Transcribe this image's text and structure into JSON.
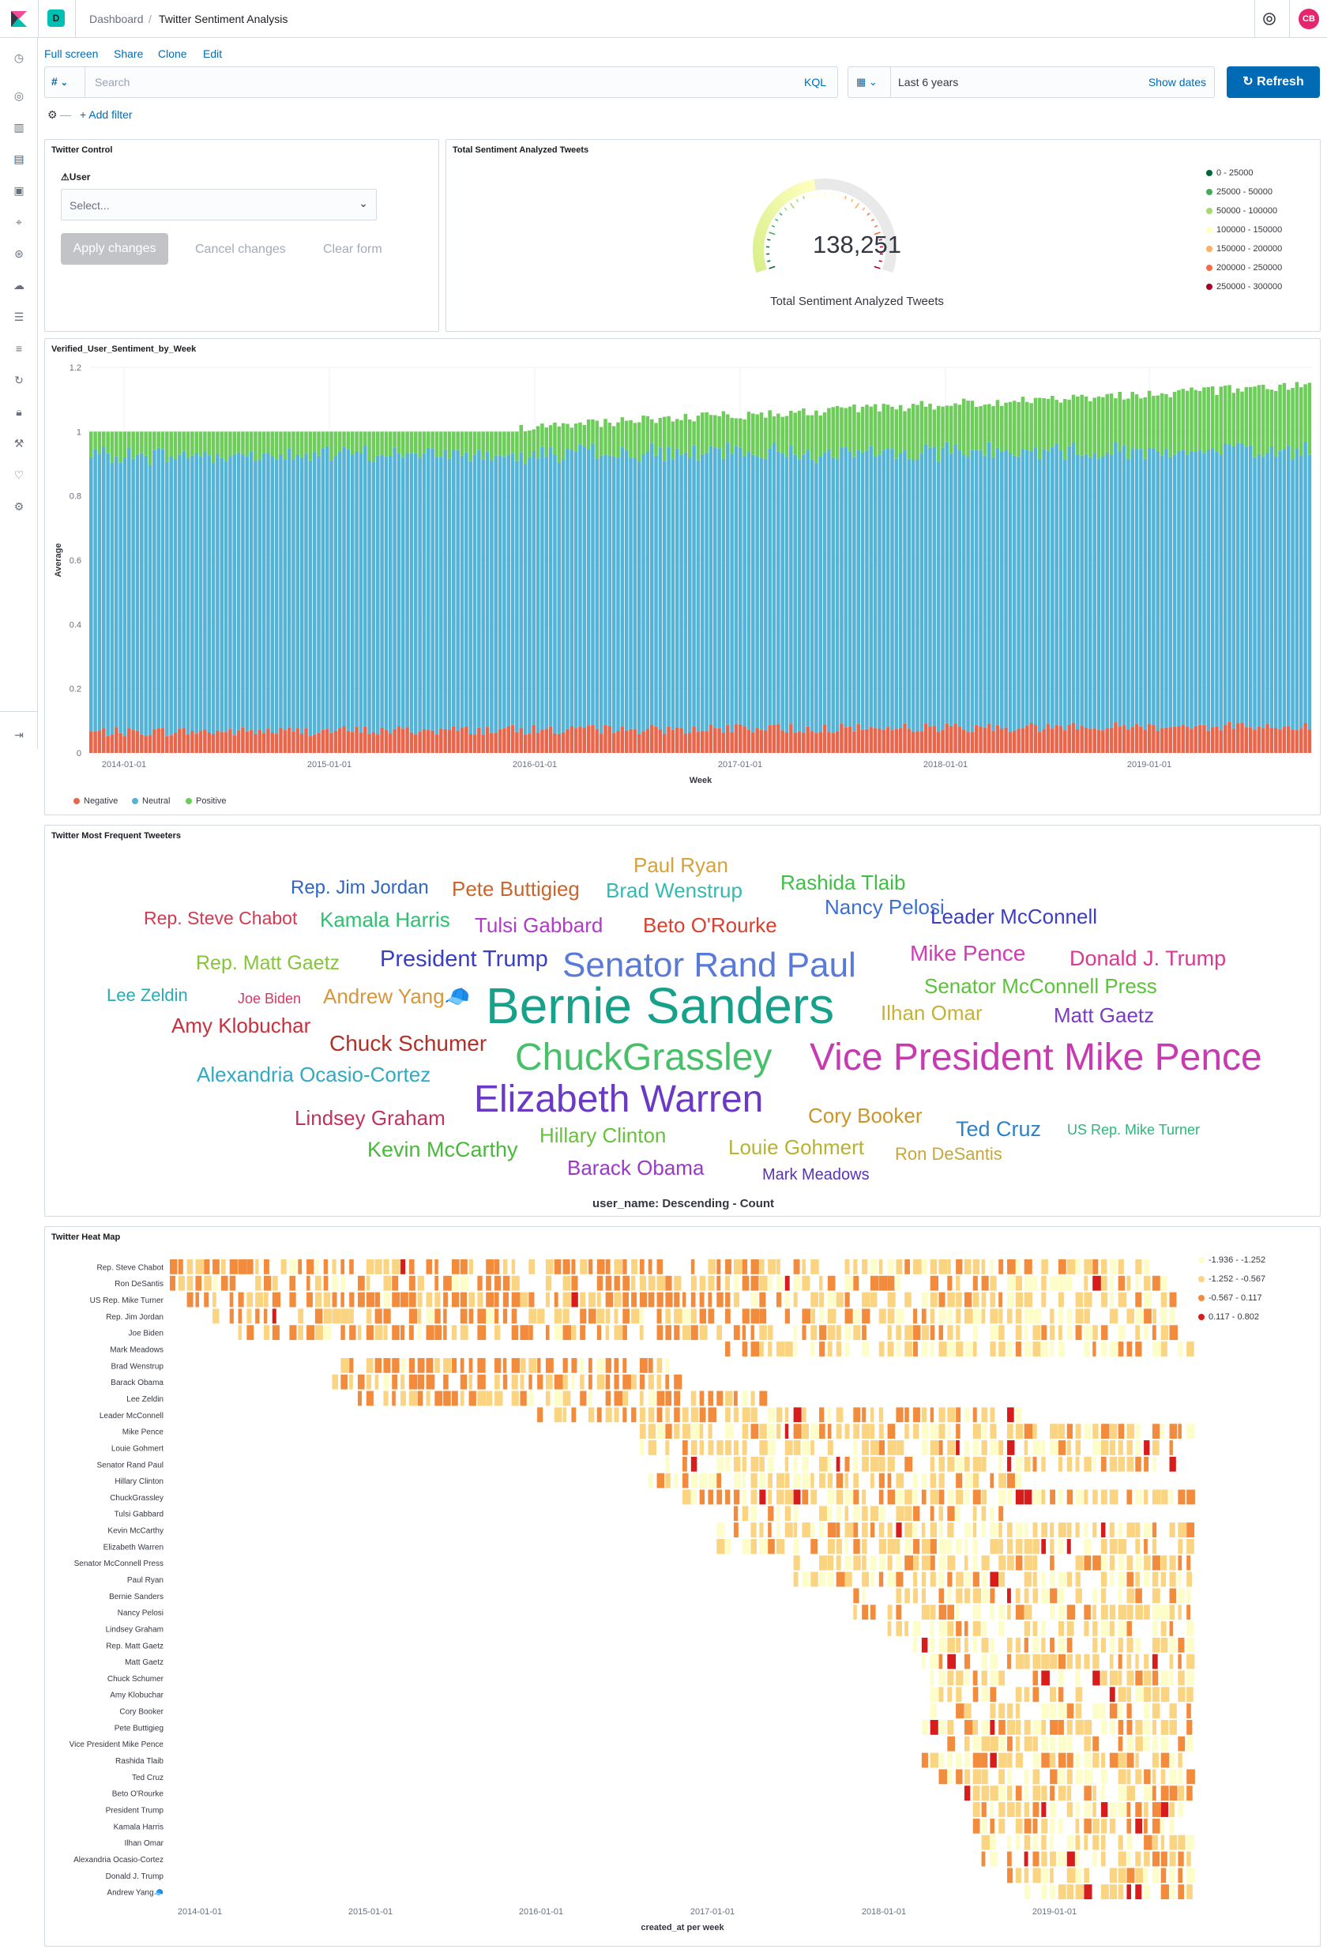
{
  "header": {
    "space_badge": "D",
    "breadcrumb_root": "Dashboard",
    "breadcrumb_sep": "/",
    "breadcrumb_current": "Twitter Sentiment Analysis",
    "user_initials": "CB"
  },
  "toolbar": {
    "full_screen": "Full screen",
    "share": "Share",
    "clone": "Clone",
    "edit": "Edit"
  },
  "query": {
    "type": "#",
    "placeholder": "Search",
    "lang": "KQL"
  },
  "time": {
    "range": "Last 6 years",
    "show_dates": "Show dates",
    "refresh": "Refresh"
  },
  "filter": {
    "add": "+ Add filter"
  },
  "controls": {
    "title": "Twitter Control",
    "user_label": "User",
    "select_placeholder": "Select...",
    "apply": "Apply changes",
    "cancel": "Cancel changes",
    "clear": "Clear form"
  },
  "gauge": {
    "title": "Total Sentiment Analyzed Tweets",
    "value": "138,251",
    "value_num": 138251,
    "max": 300000,
    "label": "Total Sentiment Analyzed Tweets",
    "legend": [
      {
        "label": "0 - 25000",
        "color": "#006837"
      },
      {
        "label": "25000 - 50000",
        "color": "#41ab5d"
      },
      {
        "label": "50000 - 100000",
        "color": "#a6d96a"
      },
      {
        "label": "100000 - 150000",
        "color": "#ffffbf"
      },
      {
        "label": "150000 - 200000",
        "color": "#fdae61"
      },
      {
        "label": "200000 - 250000",
        "color": "#f46d43"
      },
      {
        "label": "250000 - 300000",
        "color": "#a50026"
      }
    ]
  },
  "chart_data": [
    {
      "type": "bar",
      "title": "Verified_User_Sentiment_by_Week",
      "xlabel": "Week",
      "ylabel": "Average",
      "y_ticks": [
        "0",
        "0.2",
        "0.4",
        "0.6",
        "0.8",
        "1",
        "1.2"
      ],
      "ylim": [
        0,
        1.2
      ],
      "x_ticks": [
        "2014-01-01",
        "2015-01-01",
        "2016-01-01",
        "2017-01-01",
        "2018-01-01",
        "2019-01-01"
      ],
      "stacked": true,
      "series": [
        {
          "name": "Negative",
          "color": "#e7664c",
          "approx_values": "0.04-0.11"
        },
        {
          "name": "Neutral",
          "color": "#54b3d6",
          "approx_values": "0.85-0.88"
        },
        {
          "name": "Positive",
          "color": "#6dcc5a",
          "approx_values": "0.06-0.22"
        }
      ],
      "total_trend": {
        "start": 1.0,
        "end": 1.13
      }
    },
    {
      "type": "heatmap",
      "title": "Twitter Heat Map",
      "xlabel": "created_at per week",
      "x_ticks": [
        "2014-01-01",
        "2015-01-01",
        "2016-01-01",
        "2017-01-01",
        "2018-01-01",
        "2019-01-01"
      ],
      "rows": [
        "Rep. Steve Chabot",
        "Ron DeSantis",
        "US Rep. Mike Turner",
        "Rep. Jim Jordan",
        "Joe Biden",
        "Mark Meadows",
        "Brad Wenstrup",
        "Barack Obama",
        "Lee Zeldin",
        "Leader McConnell",
        "Mike Pence",
        "Louie Gohmert",
        "Senator Rand Paul",
        "Hillary Clinton",
        "ChuckGrassley",
        "Tulsi Gabbard",
        "Kevin McCarthy",
        "Elizabeth Warren",
        "Senator McConnell Press",
        "Paul Ryan",
        "Bernie Sanders",
        "Nancy Pelosi",
        "Lindsey Graham",
        "Rep. Matt Gaetz",
        "Matt Gaetz",
        "Chuck Schumer",
        "Amy Klobuchar",
        "Cory Booker",
        "Pete Buttigieg",
        "Vice President Mike Pence",
        "Rashida Tlaib",
        "Ted Cruz",
        "Beto O'Rourke",
        "President Trump",
        "Kamala Harris",
        "Ilhan Omar",
        "Alexandria Ocasio-Cortez",
        "Donald J. Trump",
        "Andrew Yang🧢"
      ],
      "row_start_week": [
        0,
        0,
        0,
        5,
        8,
        65,
        19,
        19,
        22,
        42,
        55,
        55,
        58,
        56,
        60,
        64,
        64,
        64,
        72,
        73,
        80,
        80,
        84,
        87,
        88,
        89,
        89,
        88,
        88,
        91,
        88,
        90,
        93,
        94,
        94,
        94,
        95,
        98,
        100
      ],
      "row_end_week": [
        115,
        117,
        118,
        118,
        118,
        120,
        60,
        60,
        70,
        100,
        120,
        118,
        118,
        100,
        120,
        100,
        120,
        120,
        120,
        120,
        120,
        120,
        120,
        120,
        120,
        120,
        120,
        120,
        120,
        120,
        120,
        120,
        120,
        120,
        120,
        120,
        120,
        120,
        120
      ],
      "legend": [
        {
          "label": "-1.936 - -1.252",
          "color": "#fdfdc9"
        },
        {
          "label": "-1.252 - -0.567",
          "color": "#fad480"
        },
        {
          "label": "-0.567 - 0.117",
          "color": "#f38b3d"
        },
        {
          "label": "0.117 - 0.802",
          "color": "#d81b1b"
        }
      ]
    }
  ],
  "bars_meta": {
    "legend": [
      {
        "label": "Negative",
        "color": "#e7664c"
      },
      {
        "label": "Neutral",
        "color": "#54b3d6"
      },
      {
        "label": "Positive",
        "color": "#6dcc5a"
      }
    ]
  },
  "cloud": {
    "title": "Twitter Most Frequent Tweeters",
    "caption": "user_name: Descending - Count",
    "words": [
      {
        "text": "Paul Ryan",
        "color": "#d6a23a"
      },
      {
        "text": "Rep. Jim Jordan",
        "color": "#2f66c2"
      },
      {
        "text": "Pete Buttigieg",
        "color": "#c7662e"
      },
      {
        "text": "Brad Wenstrup",
        "color": "#36b9b0"
      },
      {
        "text": "Rashida Tlaib",
        "color": "#3fbf45"
      },
      {
        "text": "Nancy Pelosi",
        "color": "#3d6fd3"
      },
      {
        "text": "Leader McConnell",
        "color": "#3d3ec4"
      },
      {
        "text": "Rep. Steve Chabot",
        "color": "#d23a52"
      },
      {
        "text": "Kamala Harris",
        "color": "#2fbf70"
      },
      {
        "text": "Tulsi Gabbard",
        "color": "#b03bc7"
      },
      {
        "text": "Beto O'Rourke",
        "color": "#d8412f"
      },
      {
        "text": "Rep. Matt Gaetz",
        "color": "#86c43a"
      },
      {
        "text": "President Trump",
        "color": "#3a3fc0"
      },
      {
        "text": "Senator Rand Paul",
        "color": "#5a7ad8"
      },
      {
        "text": "Mike Pence",
        "color": "#d23ab6"
      },
      {
        "text": "Donald J. Trump",
        "color": "#d83a93"
      },
      {
        "text": "Lee Zeldin",
        "color": "#2aaab5"
      },
      {
        "text": "Joe Biden",
        "color": "#d23a66"
      },
      {
        "text": "Andrew Yang🧢",
        "color": "#d8963a"
      },
      {
        "text": "Bernie Sanders",
        "color": "#17a08a"
      },
      {
        "text": "Senator McConnell Press",
        "color": "#5cc23c"
      },
      {
        "text": "Amy Klobuchar",
        "color": "#c4323f"
      },
      {
        "text": "Ilhan Omar",
        "color": "#c4b23a"
      },
      {
        "text": "Matt Gaetz",
        "color": "#7a3ac4"
      },
      {
        "text": "Chuck Schumer",
        "color": "#b0302a"
      },
      {
        "text": "ChuckGrassley",
        "color": "#48c06a"
      },
      {
        "text": "Vice President Mike Pence",
        "color": "#c83ab2"
      },
      {
        "text": "Alexandria Ocasio-Cortez",
        "color": "#33a8c4"
      },
      {
        "text": "Elizabeth Warren",
        "color": "#6b3ac4"
      },
      {
        "text": "Lindsey Graham",
        "color": "#c2325e"
      },
      {
        "text": "Cory Booker",
        "color": "#c9962e"
      },
      {
        "text": "Ted Cruz",
        "color": "#2f82c8"
      },
      {
        "text": "US Rep. Mike Turner",
        "color": "#2fb57a"
      },
      {
        "text": "Kevin McCarthy",
        "color": "#4ab83c"
      },
      {
        "text": "Hillary Clinton",
        "color": "#66c23a"
      },
      {
        "text": "Louie Gohmert",
        "color": "#b8b232"
      },
      {
        "text": "Ron DeSantis",
        "color": "#c8a63a"
      },
      {
        "text": "Barack Obama",
        "color": "#9a3ac4"
      },
      {
        "text": "Mark Meadows",
        "color": "#5a32b8"
      }
    ]
  }
}
